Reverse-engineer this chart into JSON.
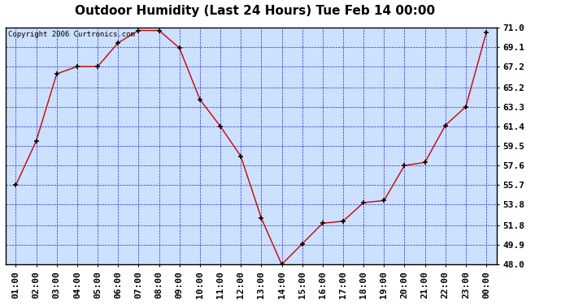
{
  "title": "Outdoor Humidity (Last 24 Hours) Tue Feb 14 00:00",
  "copyright": "Copyright 2006 Curtronics.com",
  "x_labels": [
    "01:00",
    "02:00",
    "03:00",
    "04:00",
    "05:00",
    "06:00",
    "07:00",
    "08:00",
    "09:00",
    "10:00",
    "11:00",
    "12:00",
    "13:00",
    "14:00",
    "15:00",
    "16:00",
    "17:00",
    "18:00",
    "19:00",
    "20:00",
    "21:00",
    "22:00",
    "23:00",
    "00:00"
  ],
  "data_points": [
    [
      1,
      55.7
    ],
    [
      2,
      60.0
    ],
    [
      3,
      66.5
    ],
    [
      4,
      67.2
    ],
    [
      5,
      67.2
    ],
    [
      6,
      69.5
    ],
    [
      7,
      70.7
    ],
    [
      8,
      70.7
    ],
    [
      9,
      69.0
    ],
    [
      10,
      64.0
    ],
    [
      11,
      61.4
    ],
    [
      12,
      58.5
    ],
    [
      13,
      52.5
    ],
    [
      14,
      48.0
    ],
    [
      15,
      50.0
    ],
    [
      16,
      52.0
    ],
    [
      17,
      52.2
    ],
    [
      18,
      54.0
    ],
    [
      19,
      54.2
    ],
    [
      20,
      57.6
    ],
    [
      21,
      57.9
    ],
    [
      22,
      61.5
    ],
    [
      23,
      63.3
    ],
    [
      24,
      70.5
    ]
  ],
  "y_ticks": [
    48.0,
    49.9,
    51.8,
    53.8,
    55.7,
    57.6,
    59.5,
    61.4,
    63.3,
    65.2,
    67.2,
    69.1,
    71.0
  ],
  "y_min": 48.0,
  "y_max": 71.0,
  "line_color": "#cc0000",
  "marker_color": "#000000",
  "bg_color": "#cce0ff",
  "grid_color": "#0000bb",
  "title_fontsize": 11,
  "copyright_fontsize": 6.5,
  "tick_fontsize": 8,
  "ytick_fontsize": 8
}
